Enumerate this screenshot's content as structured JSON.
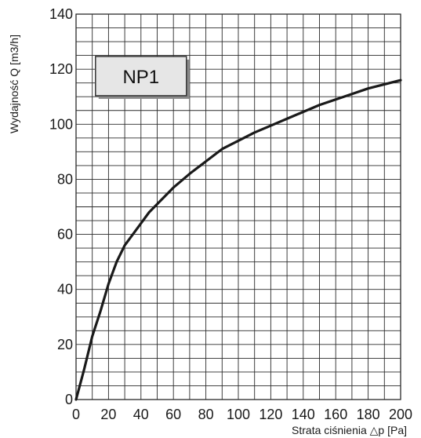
{
  "chart_data": {
    "type": "line",
    "xlabel": "Strata ciśnienia △p [Pa]",
    "ylabel": "Wydajność Q [m3/h]",
    "xlim": [
      0,
      200
    ],
    "ylim": [
      0,
      140
    ],
    "x_ticks": [
      "0",
      "20",
      "40",
      "60",
      "80",
      "100",
      "120",
      "140",
      "160",
      "180",
      "200"
    ],
    "y_ticks": [
      "0",
      "20",
      "40",
      "60",
      "80",
      "100",
      "120",
      "140"
    ],
    "grid": true,
    "grid_step_x": 10,
    "grid_step_y": 5,
    "annotations": [
      {
        "text": "NP1",
        "x": 40,
        "y": 117.5
      }
    ],
    "series": [
      {
        "name": "",
        "x": [
          0,
          5,
          10,
          15,
          20,
          25,
          30,
          35,
          40,
          45,
          50,
          60,
          70,
          80,
          90,
          100,
          110,
          120,
          130,
          140,
          150,
          160,
          170,
          180,
          190,
          200
        ],
        "y": [
          0,
          11,
          23,
          32,
          42,
          50,
          56,
          60,
          64,
          68,
          71,
          77,
          82,
          86.5,
          91,
          94,
          97,
          99.5,
          102,
          104.5,
          107,
          109,
          111,
          113,
          114.5,
          116
        ]
      }
    ]
  },
  "colors": {
    "grid": "#2a2a2a",
    "curve": "#1a1a1a",
    "badge_fill": "#e6e6e6",
    "badge_border": "#333333"
  }
}
